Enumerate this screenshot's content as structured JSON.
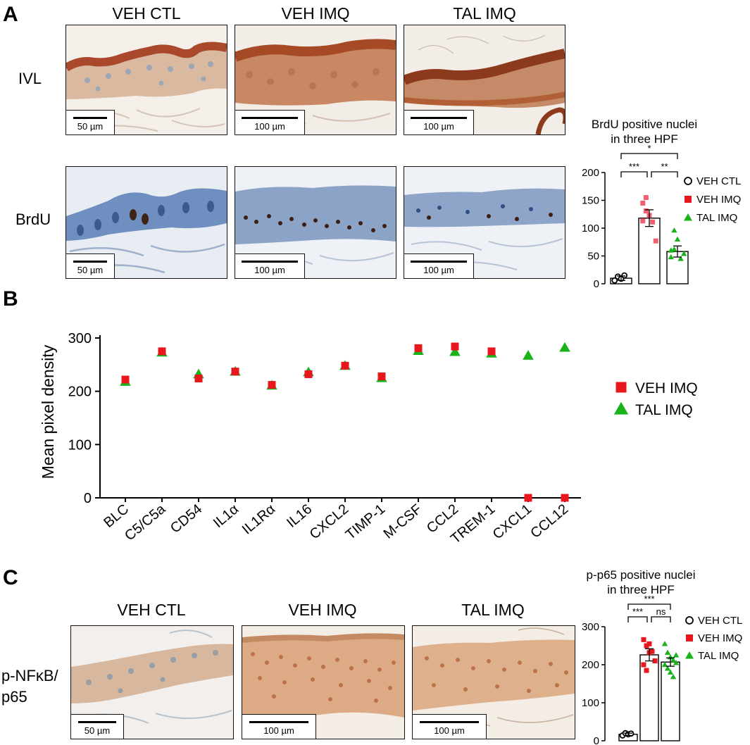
{
  "panel_a": {
    "letter": "A",
    "columns": [
      "VEH CTL",
      "VEH IMQ",
      "TAL IMQ"
    ],
    "rows": [
      "IVL",
      "BrdU"
    ],
    "scalebars": [
      "50 µm",
      "100 µm",
      "100 µm"
    ],
    "stains": {
      "ivl": "#b4572f",
      "brdu_nucleus": "#4a2b1a",
      "brdu_bg": "#7f98c0"
    }
  },
  "panel_b": {
    "letter": "B"
  },
  "panel_c": {
    "letter": "C",
    "columns": [
      "VEH CTL",
      "VEH IMQ",
      "TAL IMQ"
    ],
    "row_label_line1": "p-NFκB/",
    "row_label_line2": "p65",
    "scalebars": [
      "50 µm",
      "100 µm",
      "100 µm"
    ],
    "stains": {
      "pp65": "#c8865a"
    }
  },
  "colors": {
    "veh_ctl": "#000000",
    "veh_imq": "#e8161d",
    "tal_imq": "#19b319",
    "brdu_imq_pts": "#f06070"
  },
  "chart_data": [
    {
      "id": "brdu",
      "type": "bar",
      "title_line1": "BrdU positive nuclei",
      "title_line2": "in three HPF",
      "categories": [
        "VEH CTL",
        "VEH IMQ",
        "TAL IMQ"
      ],
      "values": [
        10,
        118,
        58
      ],
      "sem": [
        4,
        15,
        10
      ],
      "points": [
        [
          6,
          13,
          9,
          15
        ],
        [
          145,
          131,
          123,
          111,
          77,
          113,
          155
        ],
        [
          48,
          62,
          80,
          45,
          54,
          60,
          96
        ]
      ],
      "ylim": [
        0,
        200
      ],
      "yticks": [
        "0",
        "50",
        "100",
        "150",
        "200"
      ],
      "significance": [
        "***",
        "**",
        "*"
      ],
      "legend": [
        "VEH CTL",
        "VEH IMQ",
        "TAL IMQ"
      ]
    },
    {
      "id": "cytokine",
      "type": "scatter",
      "ylabel": "Mean pixel density",
      "categories": [
        "BLC",
        "C5/C5a",
        "CD54",
        "IL1α",
        "IL1Rα",
        "IL16",
        "CXCL2",
        "TIMP-1",
        "M-CSF",
        "CCL2",
        "TREM-1",
        "CXCL1",
        "CCL12"
      ],
      "series": [
        {
          "name": "VEH IMQ",
          "values": [
            222,
            275,
            224,
            237,
            212,
            232,
            248,
            228,
            281,
            284,
            275,
            0,
            0
          ]
        },
        {
          "name": "TAL IMQ",
          "values": [
            218,
            273,
            232,
            237,
            211,
            236,
            248,
            225,
            276,
            274,
            271,
            267,
            282
          ]
        }
      ],
      "ylim": [
        0,
        300
      ],
      "yticks": [
        "0",
        "100",
        "200",
        "300"
      ],
      "legend": [
        "VEH IMQ",
        "TAL IMQ"
      ]
    },
    {
      "id": "pp65",
      "type": "bar",
      "title_line1": "p-p65 positive nuclei",
      "title_line2": "in three HPF",
      "categories": [
        "VEH CTL",
        "VEH IMQ",
        "TAL IMQ"
      ],
      "values": [
        17,
        226,
        207
      ],
      "sem": [
        3,
        16,
        11
      ],
      "points": [
        [
          14,
          20,
          17,
          19
        ],
        [
          266,
          250,
          255,
          235,
          210,
          200,
          185,
          232
        ],
        [
          255,
          232,
          220,
          212,
          205,
          200,
          190,
          180,
          168,
          225
        ]
      ],
      "ylim": [
        0,
        300
      ],
      "yticks": [
        "0",
        "100",
        "200",
        "300"
      ],
      "significance": [
        "***",
        "ns",
        "***"
      ],
      "legend": [
        "VEH CTL",
        "VEH IMQ",
        "TAL IMQ"
      ]
    }
  ]
}
